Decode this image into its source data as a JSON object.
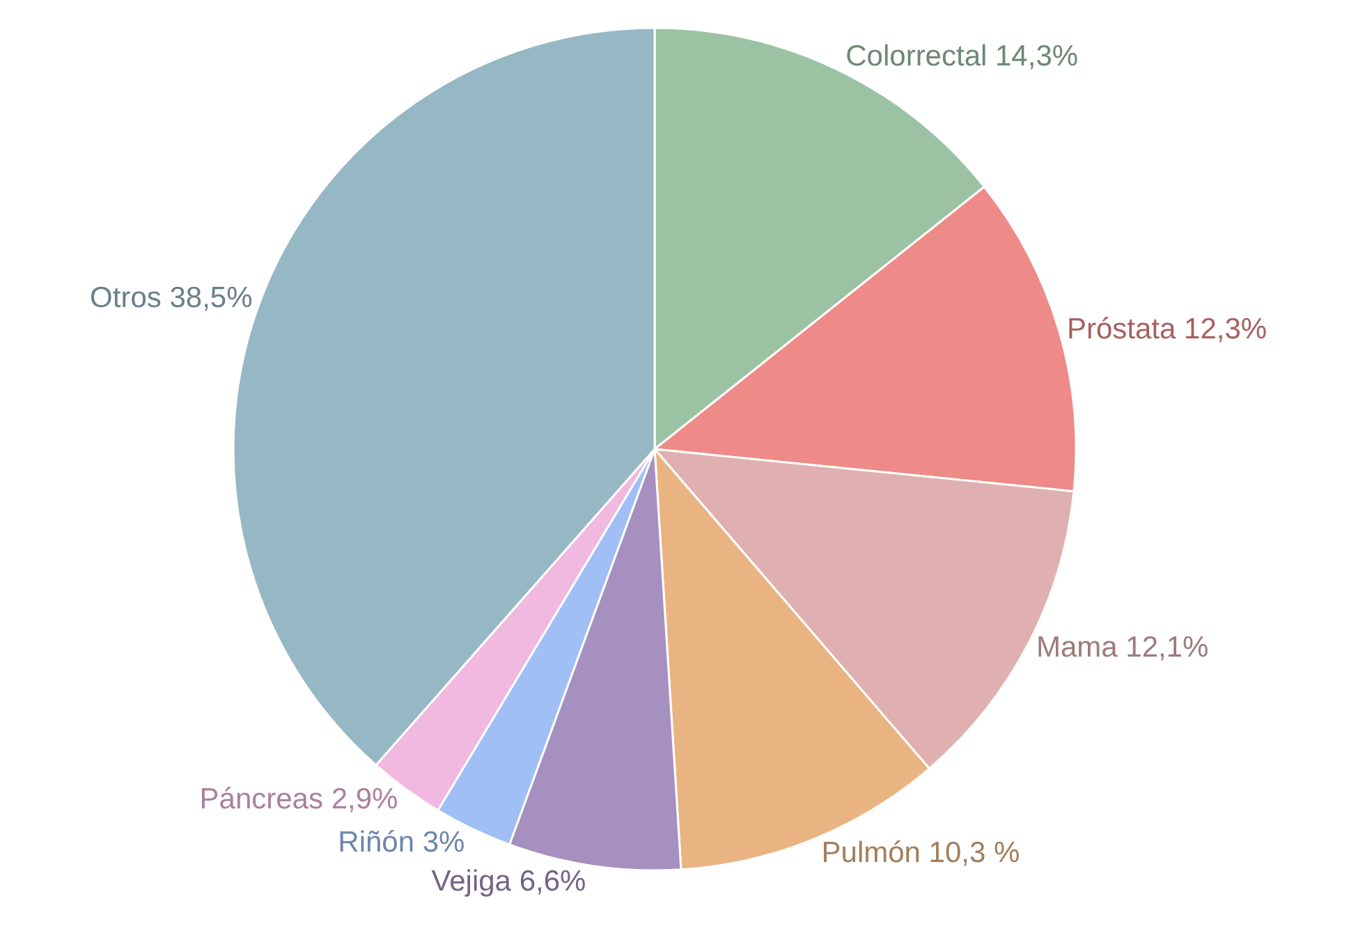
{
  "chart_data": {
    "type": "pie",
    "categories": [
      "Colorrectal",
      "Próstata",
      "Mama",
      "Pulmón",
      "Vejiga",
      "Riñón",
      "Páncreas",
      "Otros"
    ],
    "values": [
      14.3,
      12.3,
      12.1,
      10.3,
      6.6,
      3,
      2.9,
      38.5
    ],
    "value_labels": [
      "14,3%",
      "12,3%",
      "12,1%",
      "10,3 %",
      "6,6%",
      "3%",
      "2,9%",
      "38,5%"
    ],
    "colors": [
      "#9cc2a4",
      "#ee8a87",
      "#e0b0b0",
      "#e9b482",
      "#a590c0",
      "#9fbff5",
      "#f1b8e0",
      "#96b8c4"
    ],
    "legend": false
  }
}
